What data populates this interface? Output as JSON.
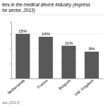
{
  "chart_data": {
    "type": "bar",
    "title": "ters in the medical device industry (express",
    "subtitle": "he sector, 2013)",
    "annotations": [
      "ata (2013)"
    ],
    "categories": [
      "Netherlands",
      "France",
      "Belgium",
      "Utd. Kingdom"
    ],
    "values": [
      15,
      14,
      11,
      9
    ],
    "value_labels": [
      "15%",
      "14%",
      "11%",
      "9%"
    ],
    "color": "#595959",
    "ylim": [
      0,
      19
    ],
    "yticks": [
      5,
      10,
      15
    ],
    "grid": true,
    "data_labels": true,
    "tick_labels": "x"
  }
}
